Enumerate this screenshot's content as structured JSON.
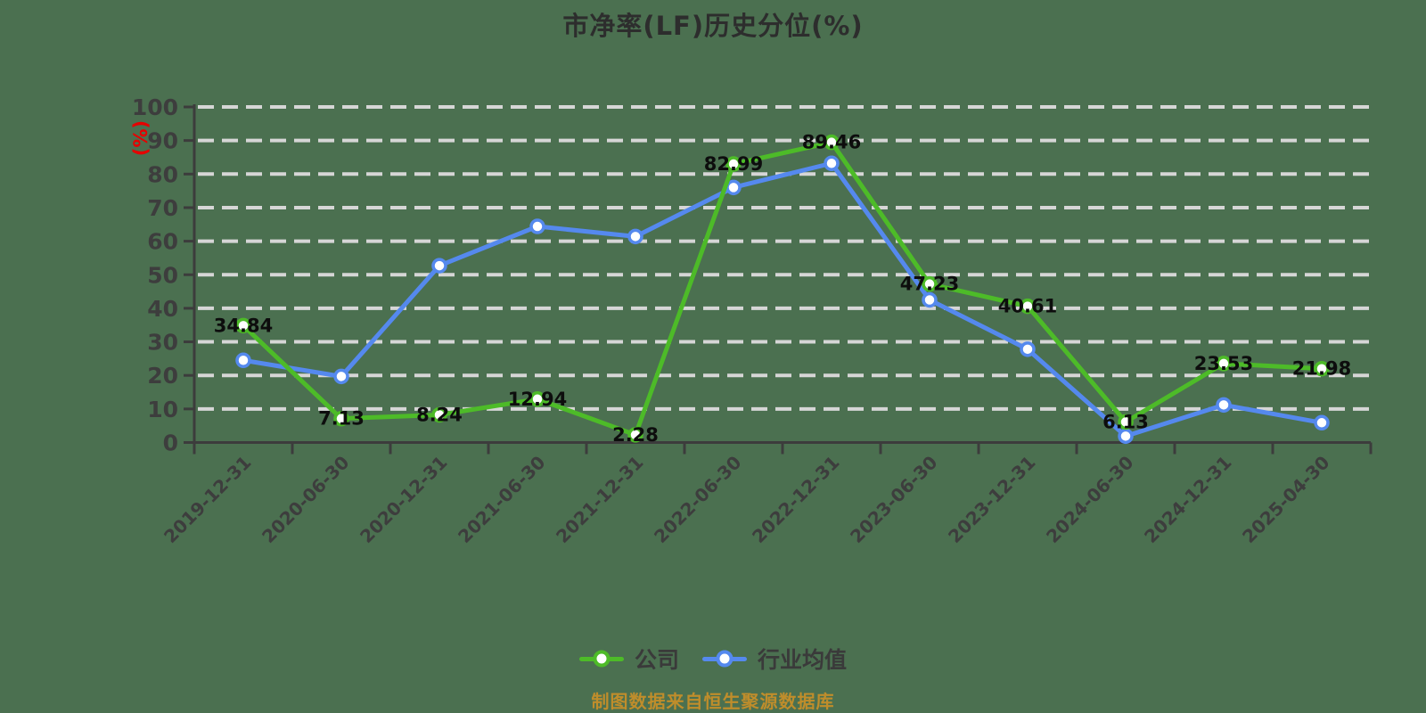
{
  "title": "市净率(LF)历史分位(%)",
  "y_axis_unit": "(%)",
  "footer_note": "制图数据来自恒生聚源数据库",
  "legend": [
    {
      "label": "公司",
      "color": "#4dbb28"
    },
    {
      "label": "行业均值",
      "color": "#5589ee"
    }
  ],
  "colors": {
    "background": "#4b7050",
    "gridline": "#d6d6d6",
    "axis": "#3c3c3c",
    "tick_label": "#3d3d3d",
    "data_label": "#0d0d0d",
    "title": "#2d2d2d",
    "unit_label": "#e60000",
    "footer": "#bf8d2b",
    "company_series": "#4dbb28",
    "industry_series": "#5589ee",
    "marker_fill": "#ffffff"
  },
  "chart_data": {
    "type": "line",
    "title": "市净率(LF)历史分位(%)",
    "xlabel": "",
    "ylabel": "(%)",
    "ylim": [
      0,
      100
    ],
    "y_ticks": [
      0,
      10,
      20,
      30,
      40,
      50,
      60,
      70,
      80,
      90,
      100
    ],
    "grid": "horizontal dashed white lines, legend at bottom center",
    "categories": [
      "2019-12-31",
      "2020-06-30",
      "2020-12-31",
      "2021-06-30",
      "2021-12-31",
      "2022-06-30",
      "2022-12-31",
      "2023-06-30",
      "2023-12-31",
      "2024-06-30",
      "2024-12-31",
      "2025-04-30"
    ],
    "series": [
      {
        "name": "公司",
        "color": "#4dbb28",
        "values": [
          34.84,
          7.13,
          8.24,
          12.94,
          2.28,
          82.99,
          89.46,
          47.23,
          40.61,
          6.13,
          23.53,
          21.98
        ],
        "point_labels_shown": true
      },
      {
        "name": "行业均值",
        "color": "#5589ee",
        "values": [
          24.5,
          19.7,
          52.7,
          64.4,
          61.4,
          76.0,
          83.2,
          42.5,
          27.8,
          1.9,
          11.2,
          5.9
        ],
        "point_labels_shown": false
      }
    ]
  }
}
